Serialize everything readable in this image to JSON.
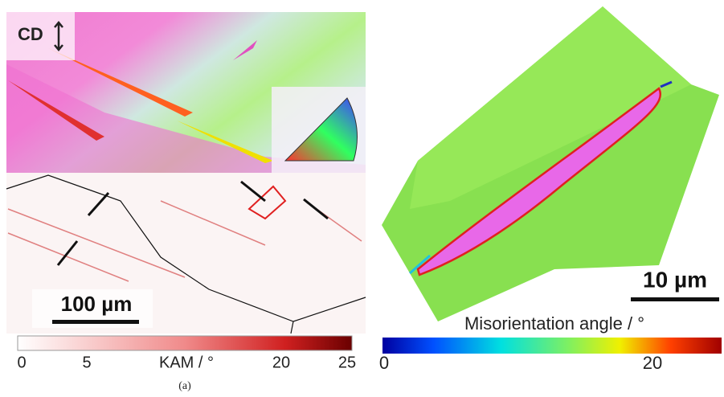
{
  "left_panel": {
    "direction_label": "CD",
    "scale_bar": "100 µm",
    "colorbar": {
      "ticks": [
        0,
        5,
        20,
        25
      ],
      "title": "KAM / °"
    },
    "caption": "(a)"
  },
  "right_panel": {
    "scale_bar": "10 µm",
    "colorbar": {
      "title": "Misorientation angle / °",
      "ticks": [
        0,
        20
      ]
    }
  }
}
